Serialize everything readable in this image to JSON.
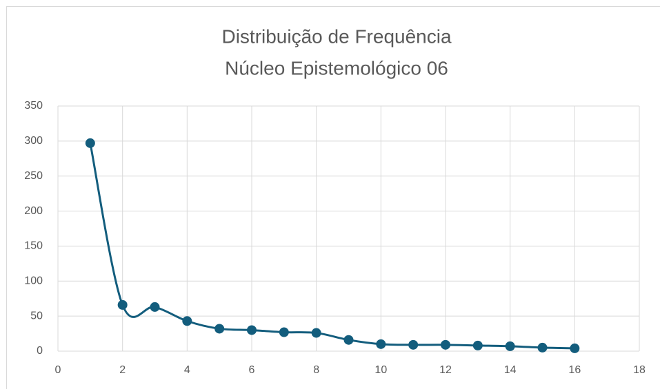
{
  "chart_data": {
    "type": "line",
    "title": "Distribuição de Frequência",
    "subtitle": "Núcleo Epistemológico 06",
    "x": [
      1,
      2,
      3,
      4,
      5,
      6,
      7,
      8,
      9,
      10,
      11,
      12,
      13,
      14,
      15,
      16
    ],
    "series": [
      {
        "color": "#135d7d",
        "values": [
          297,
          66,
          63,
          43,
          32,
          30,
          27,
          26,
          16,
          10,
          9,
          9,
          8,
          7,
          5,
          4
        ]
      }
    ],
    "xlim": [
      0,
      18
    ],
    "xticks": [
      0,
      2,
      4,
      6,
      8,
      10,
      12,
      14,
      16,
      18
    ],
    "ylim": [
      0,
      350
    ],
    "yticks": [
      0,
      50,
      100,
      150,
      200,
      250,
      300,
      350
    ],
    "grid": true,
    "smooth": true,
    "markers": true
  }
}
